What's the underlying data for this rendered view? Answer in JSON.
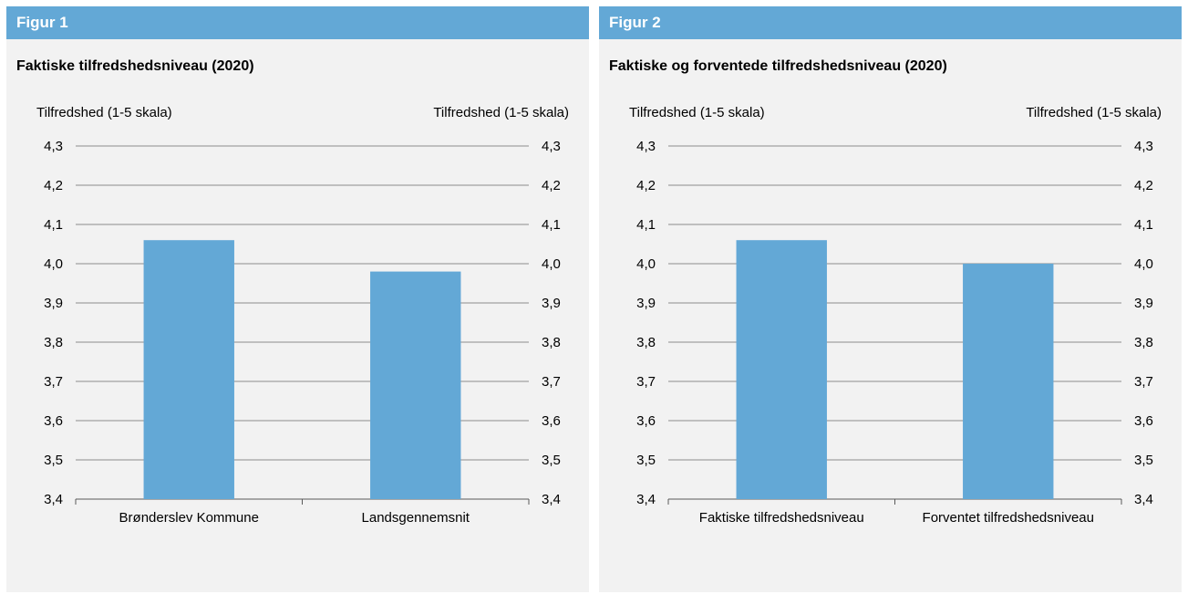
{
  "theme": {
    "header_bg": "#63a8d6",
    "panel_bg": "#f2f2f2",
    "bar_color": "#63a8d6",
    "grid_color": "#8c8c8c"
  },
  "panels": [
    {
      "header": "Figur 1",
      "title": "Faktiske tilfredshedsniveau (2020)"
    },
    {
      "header": "Figur 2",
      "title": "Faktiske og forventede tilfredshedsniveau (2020)"
    }
  ],
  "chart_data": [
    {
      "type": "bar",
      "title": "Faktiske tilfredshedsniveau (2020)",
      "ylabel": "Tilfredshed (1-5 skala)",
      "y2label": "Tilfredshed (1-5 skala)",
      "ylim": [
        3.4,
        4.3
      ],
      "yticks": [
        "3,4",
        "3,5",
        "3,6",
        "3,7",
        "3,8",
        "3,9",
        "4,0",
        "4,1",
        "4,2",
        "4,3"
      ],
      "categories": [
        "Brønderslev Kommune",
        "Landsgennemsnit"
      ],
      "values": [
        4.06,
        3.98
      ],
      "grid": true
    },
    {
      "type": "bar",
      "title": "Faktiske og forventede tilfredshedsniveau (2020)",
      "ylabel": "Tilfredshed (1-5 skala)",
      "y2label": "Tilfredshed (1-5 skala)",
      "ylim": [
        3.4,
        4.3
      ],
      "yticks": [
        "3,4",
        "3,5",
        "3,6",
        "3,7",
        "3,8",
        "3,9",
        "4,0",
        "4,1",
        "4,2",
        "4,3"
      ],
      "categories": [
        "Faktiske tilfredshedsniveau",
        "Forventet tilfredshedsniveau"
      ],
      "values": [
        4.06,
        4.0
      ],
      "grid": true
    }
  ]
}
